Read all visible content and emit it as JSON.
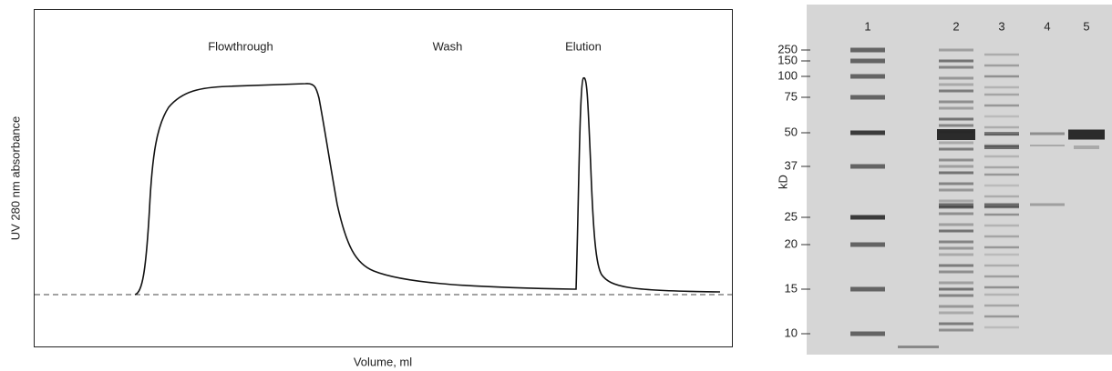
{
  "chromatogram": {
    "y_label": "UV 280 nm absorbance",
    "x_label": "Volume, ml",
    "phases": [
      "Flowthrough",
      "Wash",
      "Elution"
    ]
  },
  "gel": {
    "unit_label": "kD",
    "lanes": [
      "1",
      "2",
      "3",
      "4",
      "5"
    ],
    "markers": [
      "250",
      "150",
      "100",
      "75",
      "50",
      "37",
      "25",
      "20",
      "15",
      "10"
    ]
  }
}
